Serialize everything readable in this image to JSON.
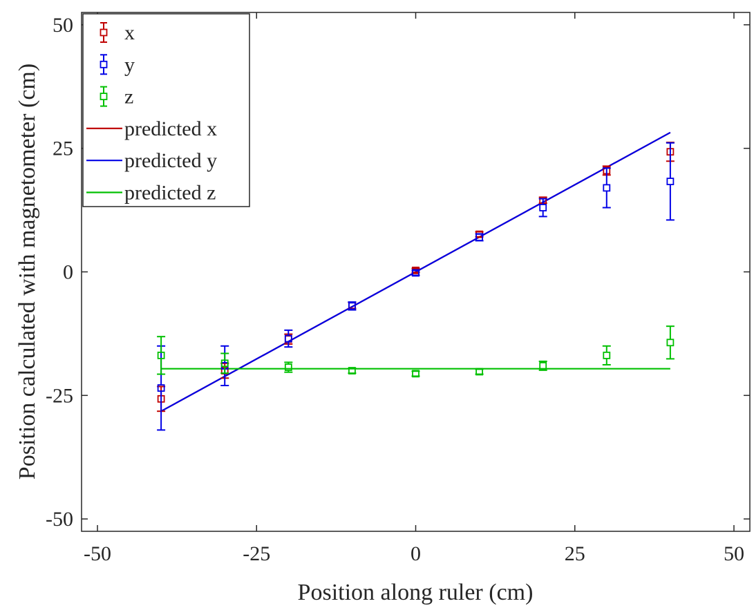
{
  "chart_data": {
    "type": "scatter",
    "title": "",
    "xlabel": "Position along ruler (cm)",
    "ylabel": "Position calculated with magnetometer (cm)",
    "xlim": [
      -52.5,
      52.5
    ],
    "ylim": [
      -52.5,
      52.5
    ],
    "xticks": [
      -50,
      -25,
      0,
      25,
      50
    ],
    "yticks": [
      -50,
      -25,
      0,
      25,
      50
    ],
    "xtick_labels": [
      "-50",
      "-25",
      "0",
      "25",
      "50"
    ],
    "ytick_labels": [
      "-50",
      "-25",
      "0",
      "25",
      "50"
    ],
    "grid": false,
    "legend_position": "top-left",
    "series": [
      {
        "name": "x",
        "kind": "errorbar",
        "color": "#c00000",
        "marker": "square",
        "x": [
          -40,
          -30,
          -20,
          -10,
          0,
          10,
          20,
          30,
          40
        ],
        "y": [
          -25.7,
          -20.0,
          -13.6,
          -6.8,
          0.3,
          7.6,
          14.5,
          20.5,
          24.3
        ],
        "err": [
          2.5,
          1.5,
          1.0,
          0.6,
          0.4,
          0.5,
          0.6,
          0.9,
          1.9
        ]
      },
      {
        "name": "y",
        "kind": "errorbar",
        "color": "#0000e6",
        "marker": "square",
        "x": [
          -40,
          -30,
          -20,
          -10,
          0,
          10,
          20,
          30,
          40
        ],
        "y": [
          -23.5,
          -19.0,
          -13.5,
          -6.9,
          -0.2,
          7.0,
          13.0,
          17.0,
          18.3
        ],
        "err": [
          8.5,
          4.0,
          1.7,
          0.8,
          0.5,
          0.7,
          1.8,
          4.0,
          7.8
        ]
      },
      {
        "name": "z",
        "kind": "errorbar",
        "color": "#00c000",
        "marker": "square",
        "x": [
          -40,
          -30,
          -20,
          -10,
          0,
          10,
          20,
          30,
          40
        ],
        "y": [
          -16.9,
          -18.5,
          -19.3,
          -20.0,
          -20.6,
          -20.2,
          -19.0,
          -16.9,
          -14.3
        ],
        "err": [
          3.8,
          2.0,
          1.0,
          0.5,
          0.5,
          0.5,
          0.9,
          1.9,
          3.3
        ]
      },
      {
        "name": "predicted x",
        "kind": "line",
        "color": "#c00000",
        "x": [
          -40,
          40
        ],
        "y": [
          -28.2,
          28.2
        ]
      },
      {
        "name": "predicted y",
        "kind": "line",
        "color": "#0000e6",
        "x": [
          -40,
          40
        ],
        "y": [
          -28.2,
          28.2
        ]
      },
      {
        "name": "predicted z",
        "kind": "line",
        "color": "#00c000",
        "x": [
          -40,
          40
        ],
        "y": [
          -19.6,
          -19.6
        ]
      }
    ]
  }
}
